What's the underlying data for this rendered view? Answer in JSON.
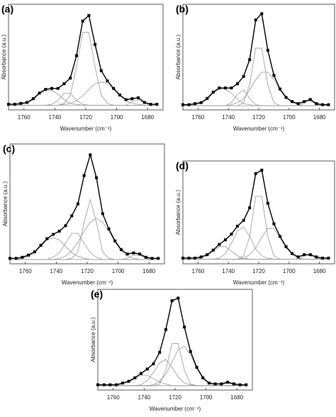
{
  "chart_data": [
    {
      "type": "line",
      "label": "(a)",
      "x_label": "Wavenumber (cm⁻¹)",
      "y_label": "Absorbance (a.u.)",
      "xlim": [
        1770,
        1670
      ],
      "xticks": [
        1760,
        1740,
        1720,
        1700,
        1680
      ],
      "ylim": [
        -0.05,
        1.08
      ],
      "x": [
        1770,
        1766,
        1762,
        1758,
        1754,
        1750,
        1746,
        1742,
        1738,
        1734,
        1730,
        1726,
        1722,
        1718,
        1714,
        1710,
        1706,
        1702,
        1698,
        1694,
        1690,
        1686,
        1682,
        1678,
        1674
      ],
      "series": [
        {
          "color": "#000000",
          "marker": "square",
          "values": [
            0.01,
            0.01,
            0.02,
            0.03,
            0.07,
            0.13,
            0.17,
            0.18,
            0.18,
            0.23,
            0.29,
            0.53,
            0.9,
            0.96,
            0.65,
            0.37,
            0.26,
            0.18,
            0.11,
            0.06,
            0.07,
            0.08,
            0.03,
            0.01,
            0.01
          ]
        },
        {
          "color": "#9a9a9a",
          "values": [
            0,
            0,
            0.01,
            0.02,
            0.06,
            0.12,
            0.16,
            0.16,
            0.12,
            0.06,
            0.02,
            0.01,
            0,
            0,
            0,
            0,
            0,
            0,
            0,
            0,
            0,
            0,
            0,
            0,
            0
          ]
        },
        {
          "color": "#9a9a9a",
          "values": [
            0,
            0,
            0,
            0,
            0,
            0,
            0,
            0.01,
            0.05,
            0.13,
            0.13,
            0.05,
            0.01,
            0,
            0,
            0,
            0,
            0,
            0,
            0,
            0,
            0,
            0,
            0,
            0
          ]
        },
        {
          "color": "#9a9a9a",
          "values": [
            0,
            0,
            0,
            0,
            0,
            0,
            0,
            0,
            0,
            0.02,
            0.11,
            0.41,
            0.78,
            0.78,
            0.41,
            0.11,
            0.02,
            0,
            0,
            0,
            0,
            0,
            0,
            0,
            0
          ]
        },
        {
          "color": "#9a9a9a",
          "values": [
            0,
            0,
            0,
            0,
            0,
            0,
            0,
            0,
            0,
            0.01,
            0.02,
            0.05,
            0.1,
            0.17,
            0.23,
            0.25,
            0.23,
            0.17,
            0.1,
            0.05,
            0.02,
            0.01,
            0,
            0,
            0
          ]
        },
        {
          "color": "#9a9a9a",
          "values": [
            0,
            0,
            0,
            0,
            0,
            0,
            0,
            0,
            0,
            0,
            0,
            0,
            0,
            0,
            0,
            0,
            0,
            0,
            0,
            0,
            0.04,
            0.06,
            0.02,
            0,
            0
          ]
        }
      ]
    },
    {
      "type": "line",
      "label": "(b)",
      "x_label": "Wavenumber (cm⁻¹)",
      "y_label": "Absorbance (a.u.)",
      "xlim": [
        1770,
        1670
      ],
      "xticks": [
        1760,
        1740,
        1720,
        1700,
        1680
      ],
      "ylim": [
        -0.04,
        0.97
      ],
      "x": [
        1770,
        1766,
        1762,
        1758,
        1754,
        1750,
        1746,
        1742,
        1738,
        1734,
        1730,
        1726,
        1722,
        1718,
        1714,
        1710,
        1706,
        1702,
        1698,
        1694,
        1690,
        1686,
        1682,
        1678,
        1674
      ],
      "series": [
        {
          "color": "#000000",
          "marker": "square",
          "values": [
            0.01,
            0.01,
            0.02,
            0.03,
            0.07,
            0.13,
            0.17,
            0.17,
            0.17,
            0.21,
            0.28,
            0.44,
            0.82,
            0.88,
            0.53,
            0.29,
            0.16,
            0.08,
            0.04,
            0.02,
            0.04,
            0.06,
            0.02,
            0.01,
            0.01
          ]
        },
        {
          "color": "#9a9a9a",
          "values": [
            0,
            0,
            0.01,
            0.02,
            0.06,
            0.12,
            0.16,
            0.16,
            0.12,
            0.06,
            0.02,
            0.01,
            0,
            0,
            0,
            0,
            0,
            0,
            0,
            0,
            0,
            0,
            0,
            0,
            0
          ]
        },
        {
          "color": "#9a9a9a",
          "values": [
            0,
            0,
            0,
            0,
            0,
            0,
            0,
            0,
            0.03,
            0.11,
            0.15,
            0.07,
            0.01,
            0,
            0,
            0,
            0,
            0,
            0,
            0,
            0,
            0,
            0,
            0,
            0
          ]
        },
        {
          "color": "#9a9a9a",
          "values": [
            0,
            0,
            0,
            0,
            0,
            0,
            0,
            0,
            0,
            0,
            0.03,
            0.2,
            0.55,
            0.55,
            0.2,
            0.03,
            0,
            0,
            0,
            0,
            0,
            0,
            0,
            0,
            0
          ]
        },
        {
          "color": "#9a9a9a",
          "values": [
            0,
            0,
            0,
            0,
            0,
            0,
            0,
            0,
            0.01,
            0.03,
            0.07,
            0.15,
            0.25,
            0.32,
            0.32,
            0.25,
            0.15,
            0.07,
            0.03,
            0.01,
            0,
            0,
            0,
            0,
            0
          ]
        },
        {
          "color": "#9a9a9a",
          "values": [
            0,
            0,
            0,
            0,
            0,
            0,
            0,
            0,
            0,
            0,
            0,
            0,
            0,
            0,
            0,
            0,
            0,
            0,
            0,
            0,
            0.03,
            0.05,
            0.01,
            0,
            0
          ]
        }
      ]
    },
    {
      "type": "line",
      "label": "(c)",
      "x_label": "Wavenumber (cm⁻¹)",
      "y_label": "Absorbance (a.u.)",
      "xlim": [
        1770,
        1670
      ],
      "xticks": [
        1760,
        1740,
        1720,
        1700,
        1680
      ],
      "ylim": [
        -0.04,
        1.06
      ],
      "x": [
        1770,
        1766,
        1762,
        1758,
        1754,
        1750,
        1746,
        1742,
        1738,
        1734,
        1730,
        1726,
        1722,
        1718,
        1714,
        1710,
        1706,
        1702,
        1698,
        1694,
        1690,
        1686,
        1682,
        1678,
        1674
      ],
      "series": [
        {
          "color": "#000000",
          "marker": "square",
          "values": [
            0.01,
            0.01,
            0.02,
            0.04,
            0.07,
            0.13,
            0.19,
            0.23,
            0.26,
            0.31,
            0.4,
            0.51,
            0.77,
            0.96,
            0.75,
            0.42,
            0.28,
            0.17,
            0.09,
            0.05,
            0.06,
            0.05,
            0.02,
            0.01,
            0.01
          ]
        },
        {
          "color": "#9a9a9a",
          "values": [
            0,
            0,
            0.01,
            0.03,
            0.06,
            0.12,
            0.18,
            0.2,
            0.18,
            0.12,
            0.06,
            0.03,
            0.01,
            0,
            0,
            0,
            0,
            0,
            0,
            0,
            0,
            0,
            0,
            0,
            0
          ]
        },
        {
          "color": "#9a9a9a",
          "values": [
            0,
            0,
            0,
            0,
            0,
            0,
            0,
            0.02,
            0.06,
            0.15,
            0.24,
            0.24,
            0.15,
            0.06,
            0.02,
            0,
            0,
            0,
            0,
            0,
            0,
            0,
            0,
            0,
            0
          ]
        },
        {
          "color": "#9a9a9a",
          "values": [
            0,
            0,
            0,
            0,
            0,
            0,
            0,
            0,
            0,
            0,
            0.01,
            0.07,
            0.34,
            0.55,
            0.34,
            0.07,
            0.01,
            0,
            0,
            0,
            0,
            0,
            0,
            0,
            0
          ]
        },
        {
          "color": "#9a9a9a",
          "values": [
            0,
            0,
            0,
            0,
            0,
            0,
            0,
            0,
            0.01,
            0.03,
            0.08,
            0.16,
            0.26,
            0.34,
            0.38,
            0.34,
            0.26,
            0.16,
            0.08,
            0.03,
            0.01,
            0,
            0,
            0,
            0
          ]
        },
        {
          "color": "#9a9a9a",
          "values": [
            0,
            0,
            0,
            0,
            0,
            0,
            0,
            0,
            0,
            0,
            0,
            0,
            0,
            0,
            0,
            0,
            0,
            0,
            0,
            0.01,
            0.04,
            0.04,
            0.01,
            0,
            0
          ]
        }
      ]
    },
    {
      "type": "line",
      "label": "(d)",
      "x_label": "Wavenumber (cm⁻¹)",
      "y_label": "Absorbance (a.u.)",
      "xlim": [
        1770,
        1670
      ],
      "xticks": [
        1760,
        1740,
        1720,
        1700,
        1680
      ],
      "ylim": [
        -0.04,
        0.86
      ],
      "x": [
        1770,
        1766,
        1762,
        1758,
        1754,
        1750,
        1746,
        1742,
        1738,
        1734,
        1730,
        1726,
        1722,
        1718,
        1714,
        1710,
        1706,
        1702,
        1698,
        1694,
        1690,
        1686,
        1682,
        1678,
        1674
      ],
      "series": [
        {
          "color": "#000000",
          "marker": "square",
          "values": [
            0.01,
            0.01,
            0.01,
            0.02,
            0.04,
            0.08,
            0.13,
            0.17,
            0.22,
            0.29,
            0.34,
            0.45,
            0.75,
            0.78,
            0.49,
            0.31,
            0.2,
            0.11,
            0.05,
            0.02,
            0.04,
            0.04,
            0.02,
            0.01,
            0.01
          ]
        },
        {
          "color": "#9a9a9a",
          "values": [
            0,
            0,
            0,
            0.01,
            0.03,
            0.07,
            0.11,
            0.11,
            0.07,
            0.03,
            0.01,
            0,
            0,
            0,
            0,
            0,
            0,
            0,
            0,
            0,
            0,
            0,
            0,
            0,
            0
          ]
        },
        {
          "color": "#9a9a9a",
          "values": [
            0,
            0,
            0,
            0,
            0,
            0,
            0.01,
            0.05,
            0.14,
            0.25,
            0.28,
            0.2,
            0.09,
            0.03,
            0.01,
            0,
            0,
            0,
            0,
            0,
            0,
            0,
            0,
            0,
            0
          ]
        },
        {
          "color": "#9a9a9a",
          "values": [
            0,
            0,
            0,
            0,
            0,
            0,
            0,
            0,
            0,
            0,
            0.03,
            0.2,
            0.55,
            0.55,
            0.2,
            0.03,
            0,
            0,
            0,
            0,
            0,
            0,
            0,
            0,
            0
          ]
        },
        {
          "color": "#9a9a9a",
          "values": [
            0,
            0,
            0,
            0,
            0,
            0,
            0,
            0,
            0,
            0,
            0.01,
            0.04,
            0.1,
            0.19,
            0.27,
            0.27,
            0.19,
            0.1,
            0.04,
            0.01,
            0,
            0,
            0,
            0,
            0
          ]
        },
        {
          "color": "#9a9a9a",
          "values": [
            0,
            0,
            0,
            0,
            0,
            0,
            0,
            0,
            0,
            0,
            0,
            0,
            0,
            0,
            0,
            0,
            0,
            0,
            0,
            0,
            0.03,
            0.03,
            0.01,
            0,
            0
          ]
        }
      ]
    },
    {
      "type": "line",
      "label": "(e)",
      "x_label": "Wavenumber (cm⁻¹)",
      "y_label": "Absorbance (a.u.)",
      "xlim": [
        1770,
        1670
      ],
      "xticks": [
        1760,
        1740,
        1720,
        1700,
        1680
      ],
      "ylim": [
        -0.05,
        1.1
      ],
      "x": [
        1770,
        1766,
        1762,
        1758,
        1754,
        1750,
        1746,
        1742,
        1738,
        1734,
        1730,
        1726,
        1722,
        1718,
        1714,
        1710,
        1706,
        1702,
        1698,
        1694,
        1690,
        1686,
        1682,
        1678,
        1674
      ],
      "series": [
        {
          "color": "#000000",
          "marker": "square",
          "values": [
            0.01,
            0.01,
            0.01,
            0.01,
            0.03,
            0.05,
            0.09,
            0.14,
            0.19,
            0.25,
            0.38,
            0.64,
            0.97,
            1.0,
            0.67,
            0.39,
            0.21,
            0.09,
            0.03,
            0.02,
            0.02,
            0.04,
            0.02,
            0.01,
            0.01
          ]
        },
        {
          "color": "#9a9a9a",
          "values": [
            0,
            0,
            0,
            0,
            0.02,
            0.04,
            0.08,
            0.12,
            0.12,
            0.08,
            0.04,
            0.02,
            0,
            0,
            0,
            0,
            0,
            0,
            0,
            0,
            0,
            0,
            0,
            0,
            0
          ]
        },
        {
          "color": "#9a9a9a",
          "values": [
            0,
            0,
            0,
            0,
            0,
            0,
            0,
            0.01,
            0.06,
            0.15,
            0.26,
            0.3,
            0.21,
            0.1,
            0.03,
            0.01,
            0,
            0,
            0,
            0,
            0,
            0,
            0,
            0,
            0
          ]
        },
        {
          "color": "#9a9a9a",
          "values": [
            0,
            0,
            0,
            0,
            0,
            0,
            0,
            0,
            0,
            0,
            0.02,
            0.18,
            0.48,
            0.48,
            0.18,
            0.02,
            0,
            0,
            0,
            0,
            0,
            0,
            0,
            0,
            0
          ]
        },
        {
          "color": "#9a9a9a",
          "values": [
            0,
            0,
            0,
            0,
            0,
            0,
            0,
            0,
            0,
            0.01,
            0.05,
            0.13,
            0.27,
            0.41,
            0.45,
            0.35,
            0.2,
            0.08,
            0.02,
            0.01,
            0,
            0,
            0,
            0,
            0
          ]
        },
        {
          "color": "#9a9a9a",
          "values": [
            0,
            0,
            0,
            0,
            0,
            0,
            0,
            0,
            0,
            0,
            0,
            0,
            0,
            0,
            0,
            0,
            0,
            0,
            0,
            0,
            0.01,
            0.03,
            0.01,
            0,
            0
          ]
        }
      ]
    }
  ]
}
